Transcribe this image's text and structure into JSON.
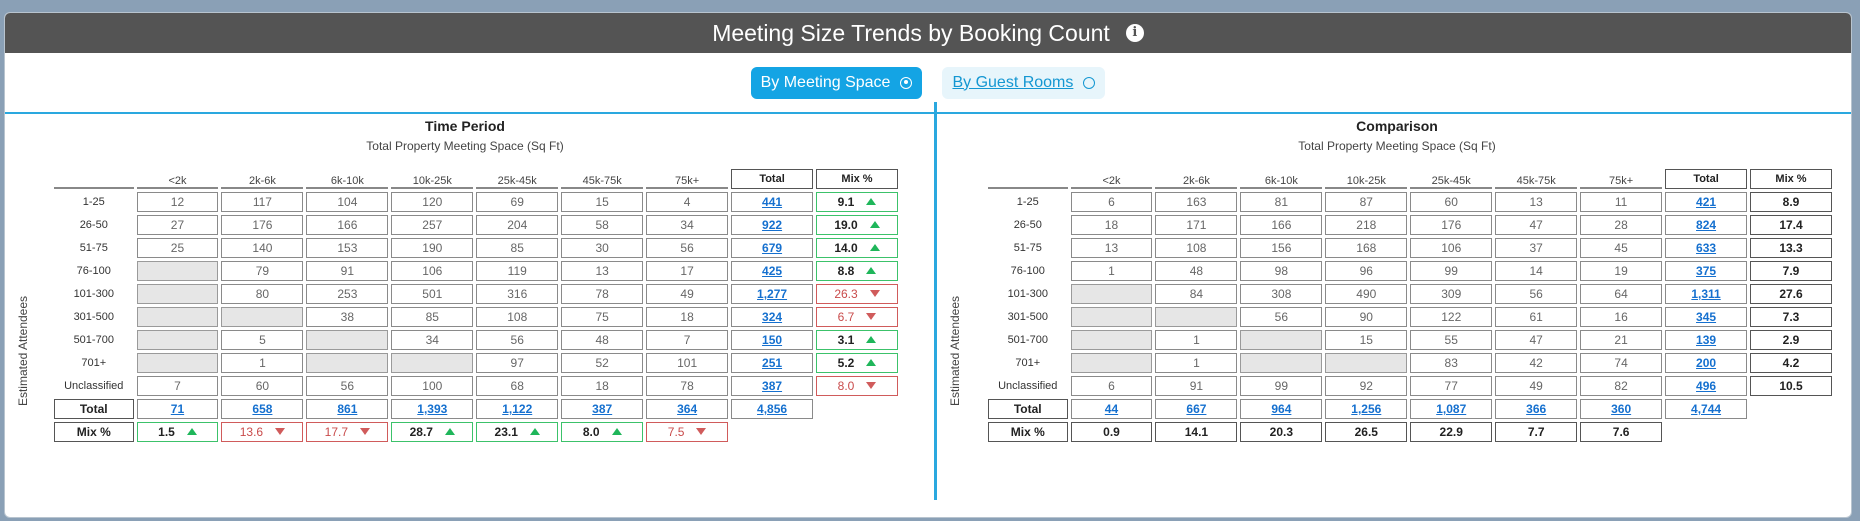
{
  "header": {
    "title": "Meeting Size Trends by Booking Count",
    "info_icon": "info-icon"
  },
  "toggles": [
    {
      "label": "By Meeting Space",
      "active": true
    },
    {
      "label": "By Guest Rooms",
      "active": false
    }
  ],
  "columns": [
    "<2k",
    "2k-6k",
    "6k-10k",
    "10k-25k",
    "25k-45k",
    "45k-75k",
    "75k+"
  ],
  "total_header": "Total",
  "mix_header": "Mix %",
  "row_labels": [
    "1-25",
    "26-50",
    "51-75",
    "76-100",
    "101-300",
    "301-500",
    "501-700",
    "701+",
    "Unclassified"
  ],
  "total_row_label": "Total",
  "mix_row_label": "Mix %",
  "y_axis_label": "Estimated Attendees",
  "colors": {
    "title_bar": "#545454",
    "accent": "#14a4e4",
    "up": "#1fb65a",
    "down": "#d05b5b",
    "link": "#1570cf"
  },
  "left": {
    "title": "Time Period",
    "subtitle": "Total Property Meeting Space (Sq Ft)",
    "rows": [
      [
        "12",
        "117",
        "104",
        "120",
        "69",
        "15",
        "4"
      ],
      [
        "27",
        "176",
        "166",
        "257",
        "204",
        "58",
        "34"
      ],
      [
        "25",
        "140",
        "153",
        "190",
        "85",
        "30",
        "56"
      ],
      [
        "",
        "79",
        "91",
        "106",
        "119",
        "13",
        "17"
      ],
      [
        "",
        "80",
        "253",
        "501",
        "316",
        "78",
        "49"
      ],
      [
        "",
        "",
        "38",
        "85",
        "108",
        "75",
        "18"
      ],
      [
        "",
        "5",
        "",
        "34",
        "56",
        "48",
        "7"
      ],
      [
        "",
        "1",
        "",
        "",
        "97",
        "52",
        "101"
      ],
      [
        "7",
        "60",
        "56",
        "100",
        "68",
        "18",
        "78"
      ]
    ],
    "row_totals": [
      "441",
      "922",
      "679",
      "425",
      "1,277",
      "324",
      "150",
      "251",
      "387"
    ],
    "row_mix": [
      {
        "value": "9.1",
        "trend": "up"
      },
      {
        "value": "19.0",
        "trend": "up"
      },
      {
        "value": "14.0",
        "trend": "up"
      },
      {
        "value": "8.8",
        "trend": "up"
      },
      {
        "value": "26.3",
        "trend": "down"
      },
      {
        "value": "6.7",
        "trend": "down"
      },
      {
        "value": "3.1",
        "trend": "up"
      },
      {
        "value": "5.2",
        "trend": "up"
      },
      {
        "value": "8.0",
        "trend": "down"
      }
    ],
    "col_totals": [
      "71",
      "658",
      "861",
      "1,393",
      "1,122",
      "387",
      "364"
    ],
    "grand_total": "4,856",
    "col_mix": [
      {
        "value": "1.5",
        "trend": "up"
      },
      {
        "value": "13.6",
        "trend": "down"
      },
      {
        "value": "17.7",
        "trend": "down"
      },
      {
        "value": "28.7",
        "trend": "up"
      },
      {
        "value": "23.1",
        "trend": "up"
      },
      {
        "value": "8.0",
        "trend": "up"
      },
      {
        "value": "7.5",
        "trend": "down"
      }
    ]
  },
  "right": {
    "title": "Comparison",
    "subtitle": "Total Property Meeting Space (Sq Ft)",
    "rows": [
      [
        "6",
        "163",
        "81",
        "87",
        "60",
        "13",
        "11"
      ],
      [
        "18",
        "171",
        "166",
        "218",
        "176",
        "47",
        "28"
      ],
      [
        "13",
        "108",
        "156",
        "168",
        "106",
        "37",
        "45"
      ],
      [
        "1",
        "48",
        "98",
        "96",
        "99",
        "14",
        "19"
      ],
      [
        "",
        "84",
        "308",
        "490",
        "309",
        "56",
        "64"
      ],
      [
        "",
        "",
        "56",
        "90",
        "122",
        "61",
        "16"
      ],
      [
        "",
        "1",
        "",
        "15",
        "55",
        "47",
        "21"
      ],
      [
        "",
        "1",
        "",
        "",
        "83",
        "42",
        "74"
      ],
      [
        "6",
        "91",
        "99",
        "92",
        "77",
        "49",
        "82"
      ]
    ],
    "row_totals": [
      "421",
      "824",
      "633",
      "375",
      "1,311",
      "345",
      "139",
      "200",
      "496"
    ],
    "row_mix": [
      "8.9",
      "17.4",
      "13.3",
      "7.9",
      "27.6",
      "7.3",
      "2.9",
      "4.2",
      "10.5"
    ],
    "col_totals": [
      "44",
      "667",
      "964",
      "1,256",
      "1,087",
      "366",
      "360"
    ],
    "grand_total": "4,744",
    "col_mix": [
      "0.9",
      "14.1",
      "20.3",
      "26.5",
      "22.9",
      "7.7",
      "7.6"
    ]
  }
}
